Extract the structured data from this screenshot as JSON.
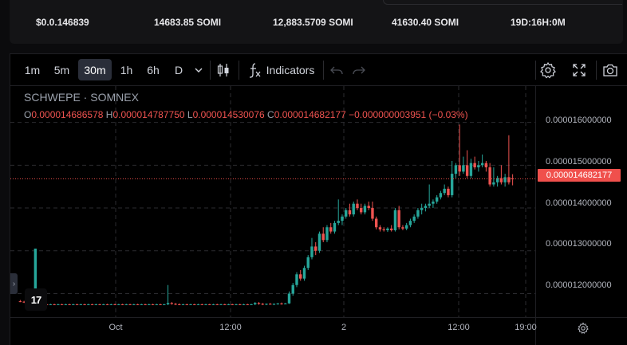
{
  "stats": [
    "$0.0.146839",
    "14683.85 SOMI",
    "12,883.5709 SOMI",
    "41630.40 SOMI",
    "19D:16H:0M"
  ],
  "toolbar": {
    "intervals": [
      "1m",
      "5m",
      "30m",
      "1h",
      "6h",
      "D"
    ],
    "active_interval": "30m",
    "indicators_label": "Indicators"
  },
  "legend": {
    "title": "SCHWEPE · SOMNEX",
    "o_key": "O",
    "o": "0.000014686578",
    "h_key": "H",
    "h": "0.000014787750",
    "l_key": "L",
    "l": "0.000014530076",
    "c_key": "C",
    "c": "0.000014682177",
    "change": "−0.000000003951 (−0.03%)"
  },
  "logo_text": "17",
  "colors": {
    "up": "#26a69a",
    "down": "#ef5350",
    "price_line": "#f0504c"
  },
  "chart_data": {
    "type": "candlestick",
    "y_ticks": [
      "0.000016000000",
      "0.000015000000",
      "0.000014000000",
      "0.000013000000",
      "0.000012000000"
    ],
    "y_tick_values": [
      1.6e-05,
      1.5e-05,
      1.4e-05,
      1.3e-05,
      1.2e-05
    ],
    "ylim": [
      1.145e-05,
      1.685e-05
    ],
    "last_price_label": "0.000014682177",
    "last_price": 1.4682177e-05,
    "x_ticks": [
      "Oct",
      "12:00",
      "2",
      "12:00",
      "19:00"
    ],
    "grid": true,
    "candles": [
      {
        "o": 11.82,
        "h": 11.85,
        "l": 11.8,
        "c": 11.81
      },
      {
        "o": 11.81,
        "h": 11.83,
        "l": 11.78,
        "c": 11.8
      },
      {
        "o": 11.8,
        "h": 11.82,
        "l": 11.72,
        "c": 11.74
      },
      {
        "o": 11.74,
        "h": 11.76,
        "l": 11.72,
        "c": 11.74
      },
      {
        "o": 11.74,
        "h": 13.05,
        "l": 11.72,
        "c": 13.05
      },
      {
        "o": 11.76,
        "h": 11.78,
        "l": 11.72,
        "c": 11.74
      },
      {
        "o": 11.74,
        "h": 11.76,
        "l": 11.72,
        "c": 11.75
      },
      {
        "o": 11.75,
        "h": 11.76,
        "l": 11.73,
        "c": 11.74
      },
      {
        "o": 11.74,
        "h": 11.76,
        "l": 11.73,
        "c": 11.75
      },
      {
        "o": 11.75,
        "h": 11.76,
        "l": 11.73,
        "c": 11.74
      },
      {
        "o": 11.74,
        "h": 11.76,
        "l": 11.73,
        "c": 11.75
      },
      {
        "o": 11.75,
        "h": 11.76,
        "l": 11.73,
        "c": 11.74
      },
      {
        "o": 11.74,
        "h": 11.76,
        "l": 11.73,
        "c": 11.75
      },
      {
        "o": 11.75,
        "h": 11.76,
        "l": 11.73,
        "c": 11.74
      },
      {
        "o": 11.74,
        "h": 11.76,
        "l": 11.73,
        "c": 11.75
      },
      {
        "o": 11.75,
        "h": 11.76,
        "l": 11.73,
        "c": 11.74
      },
      {
        "o": 11.74,
        "h": 11.76,
        "l": 11.73,
        "c": 11.75
      },
      {
        "o": 11.75,
        "h": 11.76,
        "l": 11.73,
        "c": 11.74
      },
      {
        "o": 11.74,
        "h": 11.76,
        "l": 11.73,
        "c": 11.75
      },
      {
        "o": 11.75,
        "h": 11.76,
        "l": 11.73,
        "c": 11.74
      },
      {
        "o": 11.74,
        "h": 11.76,
        "l": 11.73,
        "c": 11.75
      },
      {
        "o": 11.75,
        "h": 11.76,
        "l": 11.73,
        "c": 11.74
      },
      {
        "o": 11.74,
        "h": 11.76,
        "l": 11.73,
        "c": 11.75
      },
      {
        "o": 11.75,
        "h": 11.76,
        "l": 11.73,
        "c": 11.74
      },
      {
        "o": 11.74,
        "h": 11.76,
        "l": 11.73,
        "c": 11.75
      },
      {
        "o": 11.75,
        "h": 11.76,
        "l": 11.73,
        "c": 11.74
      },
      {
        "o": 11.74,
        "h": 11.76,
        "l": 11.73,
        "c": 11.75
      },
      {
        "o": 11.75,
        "h": 11.76,
        "l": 11.73,
        "c": 11.74
      },
      {
        "o": 11.74,
        "h": 11.76,
        "l": 11.73,
        "c": 11.75
      },
      {
        "o": 11.75,
        "h": 11.76,
        "l": 11.73,
        "c": 11.74
      },
      {
        "o": 11.74,
        "h": 11.76,
        "l": 11.73,
        "c": 11.75
      },
      {
        "o": 11.75,
        "h": 11.76,
        "l": 11.73,
        "c": 11.74
      },
      {
        "o": 11.74,
        "h": 11.76,
        "l": 11.73,
        "c": 11.75
      },
      {
        "o": 11.75,
        "h": 11.76,
        "l": 11.73,
        "c": 11.74
      },
      {
        "o": 11.74,
        "h": 11.76,
        "l": 11.73,
        "c": 11.75
      },
      {
        "o": 11.75,
        "h": 11.76,
        "l": 11.73,
        "c": 11.74
      },
      {
        "o": 11.74,
        "h": 11.76,
        "l": 11.73,
        "c": 11.75
      },
      {
        "o": 11.75,
        "h": 11.76,
        "l": 11.73,
        "c": 11.74
      },
      {
        "o": 11.74,
        "h": 11.76,
        "l": 11.73,
        "c": 11.75
      },
      {
        "o": 11.75,
        "h": 12.2,
        "l": 11.73,
        "c": 11.78
      },
      {
        "o": 11.78,
        "h": 11.8,
        "l": 11.74,
        "c": 11.76
      },
      {
        "o": 11.76,
        "h": 11.78,
        "l": 11.73,
        "c": 11.75
      },
      {
        "o": 11.75,
        "h": 11.77,
        "l": 11.73,
        "c": 11.74
      },
      {
        "o": 11.74,
        "h": 11.76,
        "l": 11.73,
        "c": 11.75
      },
      {
        "o": 11.75,
        "h": 11.76,
        "l": 11.73,
        "c": 11.74
      },
      {
        "o": 11.74,
        "h": 11.76,
        "l": 11.73,
        "c": 11.75
      },
      {
        "o": 11.75,
        "h": 11.76,
        "l": 11.73,
        "c": 11.74
      },
      {
        "o": 11.74,
        "h": 11.76,
        "l": 11.73,
        "c": 11.75
      },
      {
        "o": 11.75,
        "h": 11.76,
        "l": 11.73,
        "c": 11.74
      },
      {
        "o": 11.74,
        "h": 11.76,
        "l": 11.73,
        "c": 11.75
      },
      {
        "o": 11.75,
        "h": 11.76,
        "l": 11.73,
        "c": 11.74
      },
      {
        "o": 11.74,
        "h": 11.76,
        "l": 11.73,
        "c": 11.75
      },
      {
        "o": 11.75,
        "h": 11.76,
        "l": 11.73,
        "c": 11.74
      },
      {
        "o": 11.74,
        "h": 11.76,
        "l": 11.73,
        "c": 11.75
      },
      {
        "o": 11.75,
        "h": 11.76,
        "l": 11.73,
        "c": 11.74
      },
      {
        "o": 11.74,
        "h": 11.76,
        "l": 11.73,
        "c": 11.75
      },
      {
        "o": 11.75,
        "h": 11.76,
        "l": 11.73,
        "c": 11.74
      },
      {
        "o": 11.74,
        "h": 11.76,
        "l": 11.73,
        "c": 11.75
      },
      {
        "o": 11.75,
        "h": 11.76,
        "l": 11.73,
        "c": 11.74
      },
      {
        "o": 11.74,
        "h": 11.76,
        "l": 11.73,
        "c": 11.75
      },
      {
        "o": 11.75,
        "h": 11.76,
        "l": 11.73,
        "c": 11.74
      },
      {
        "o": 11.74,
        "h": 11.76,
        "l": 11.73,
        "c": 11.75
      },
      {
        "o": 11.75,
        "h": 11.8,
        "l": 11.73,
        "c": 11.78
      },
      {
        "o": 11.78,
        "h": 11.8,
        "l": 11.74,
        "c": 11.76
      },
      {
        "o": 11.76,
        "h": 11.78,
        "l": 11.73,
        "c": 11.75
      },
      {
        "o": 11.75,
        "h": 11.77,
        "l": 11.73,
        "c": 11.76
      },
      {
        "o": 11.76,
        "h": 11.78,
        "l": 11.74,
        "c": 11.75
      },
      {
        "o": 11.75,
        "h": 11.77,
        "l": 11.73,
        "c": 11.76
      },
      {
        "o": 11.76,
        "h": 11.78,
        "l": 11.74,
        "c": 11.77
      },
      {
        "o": 11.77,
        "h": 11.79,
        "l": 11.74,
        "c": 11.76
      },
      {
        "o": 11.76,
        "h": 11.78,
        "l": 11.75,
        "c": 11.77
      },
      {
        "o": 11.77,
        "h": 12.05,
        "l": 11.76,
        "c": 12.0
      },
      {
        "o": 12.0,
        "h": 12.25,
        "l": 11.95,
        "c": 12.2
      },
      {
        "o": 12.2,
        "h": 12.5,
        "l": 12.15,
        "c": 12.45
      },
      {
        "o": 12.45,
        "h": 12.55,
        "l": 12.3,
        "c": 12.35
      },
      {
        "o": 12.35,
        "h": 12.65,
        "l": 12.3,
        "c": 12.6
      },
      {
        "o": 12.6,
        "h": 12.9,
        "l": 12.55,
        "c": 12.85
      },
      {
        "o": 12.85,
        "h": 13.3,
        "l": 12.8,
        "c": 13.1
      },
      {
        "o": 13.1,
        "h": 13.2,
        "l": 12.9,
        "c": 13.0
      },
      {
        "o": 13.0,
        "h": 13.45,
        "l": 12.95,
        "c": 13.4
      },
      {
        "o": 13.4,
        "h": 13.55,
        "l": 13.2,
        "c": 13.25
      },
      {
        "o": 13.25,
        "h": 13.6,
        "l": 13.2,
        "c": 13.55
      },
      {
        "o": 13.55,
        "h": 13.65,
        "l": 13.4,
        "c": 13.45
      },
      {
        "o": 13.45,
        "h": 13.7,
        "l": 13.4,
        "c": 13.65
      },
      {
        "o": 13.65,
        "h": 14.2,
        "l": 13.6,
        "c": 13.7
      },
      {
        "o": 13.7,
        "h": 13.85,
        "l": 13.6,
        "c": 13.8
      },
      {
        "o": 13.8,
        "h": 14.0,
        "l": 13.75,
        "c": 13.95
      },
      {
        "o": 13.95,
        "h": 14.1,
        "l": 13.8,
        "c": 13.85
      },
      {
        "o": 13.85,
        "h": 14.15,
        "l": 13.8,
        "c": 14.1
      },
      {
        "o": 14.1,
        "h": 14.2,
        "l": 13.95,
        "c": 14.0
      },
      {
        "o": 14.0,
        "h": 14.1,
        "l": 13.85,
        "c": 13.9
      },
      {
        "o": 13.9,
        "h": 14.1,
        "l": 13.85,
        "c": 14.05
      },
      {
        "o": 14.05,
        "h": 14.15,
        "l": 13.95,
        "c": 14.0
      },
      {
        "o": 14.0,
        "h": 14.15,
        "l": 13.7,
        "c": 13.75
      },
      {
        "o": 13.75,
        "h": 13.8,
        "l": 13.5,
        "c": 13.55
      },
      {
        "o": 13.55,
        "h": 13.6,
        "l": 13.45,
        "c": 13.5
      },
      {
        "o": 13.5,
        "h": 13.55,
        "l": 13.45,
        "c": 13.48
      },
      {
        "o": 13.48,
        "h": 13.55,
        "l": 13.44,
        "c": 13.52
      },
      {
        "o": 13.52,
        "h": 13.6,
        "l": 13.45,
        "c": 13.48
      },
      {
        "o": 13.48,
        "h": 14.0,
        "l": 13.45,
        "c": 13.95
      },
      {
        "o": 13.95,
        "h": 14.05,
        "l": 13.5,
        "c": 13.55
      },
      {
        "o": 13.55,
        "h": 13.6,
        "l": 13.48,
        "c": 13.52
      },
      {
        "o": 13.52,
        "h": 13.65,
        "l": 13.48,
        "c": 13.6
      },
      {
        "o": 13.6,
        "h": 13.75,
        "l": 13.55,
        "c": 13.7
      },
      {
        "o": 13.7,
        "h": 13.85,
        "l": 13.65,
        "c": 13.8
      },
      {
        "o": 13.8,
        "h": 14.0,
        "l": 13.75,
        "c": 13.95
      },
      {
        "o": 13.95,
        "h": 14.1,
        "l": 13.85,
        "c": 14.0
      },
      {
        "o": 14.0,
        "h": 14.1,
        "l": 13.92,
        "c": 14.05
      },
      {
        "o": 14.05,
        "h": 14.55,
        "l": 14.0,
        "c": 14.1
      },
      {
        "o": 14.1,
        "h": 14.2,
        "l": 14.0,
        "c": 14.15
      },
      {
        "o": 14.15,
        "h": 14.3,
        "l": 14.1,
        "c": 14.25
      },
      {
        "o": 14.25,
        "h": 14.4,
        "l": 14.2,
        "c": 14.35
      },
      {
        "o": 14.35,
        "h": 14.55,
        "l": 14.3,
        "c": 14.45
      },
      {
        "o": 14.45,
        "h": 14.5,
        "l": 14.25,
        "c": 14.3
      },
      {
        "o": 14.3,
        "h": 15.1,
        "l": 14.25,
        "c": 14.8
      },
      {
        "o": 14.8,
        "h": 15.05,
        "l": 14.7,
        "c": 15.0
      },
      {
        "o": 15.0,
        "h": 15.95,
        "l": 14.75,
        "c": 14.85
      },
      {
        "o": 14.85,
        "h": 15.2,
        "l": 14.8,
        "c": 15.0
      },
      {
        "o": 15.0,
        "h": 15.35,
        "l": 14.7,
        "c": 14.75
      },
      {
        "o": 14.75,
        "h": 15.15,
        "l": 14.7,
        "c": 15.05
      },
      {
        "o": 15.05,
        "h": 15.2,
        "l": 14.9,
        "c": 14.95
      },
      {
        "o": 14.95,
        "h": 15.1,
        "l": 14.85,
        "c": 15.0
      },
      {
        "o": 15.0,
        "h": 15.25,
        "l": 14.95,
        "c": 15.05
      },
      {
        "o": 15.05,
        "h": 15.1,
        "l": 14.85,
        "c": 14.95
      },
      {
        "o": 14.95,
        "h": 15.05,
        "l": 14.5,
        "c": 14.55
      },
      {
        "o": 14.55,
        "h": 14.95,
        "l": 14.5,
        "c": 14.6
      },
      {
        "o": 14.6,
        "h": 14.75,
        "l": 14.5,
        "c": 14.7
      },
      {
        "o": 14.7,
        "h": 15.0,
        "l": 14.55,
        "c": 14.6
      },
      {
        "o": 14.6,
        "h": 14.8,
        "l": 14.5,
        "c": 14.72
      },
      {
        "o": 14.72,
        "h": 15.7,
        "l": 14.55,
        "c": 14.6
      },
      {
        "o": 14.69,
        "h": 14.79,
        "l": 14.53,
        "c": 14.68
      }
    ]
  }
}
